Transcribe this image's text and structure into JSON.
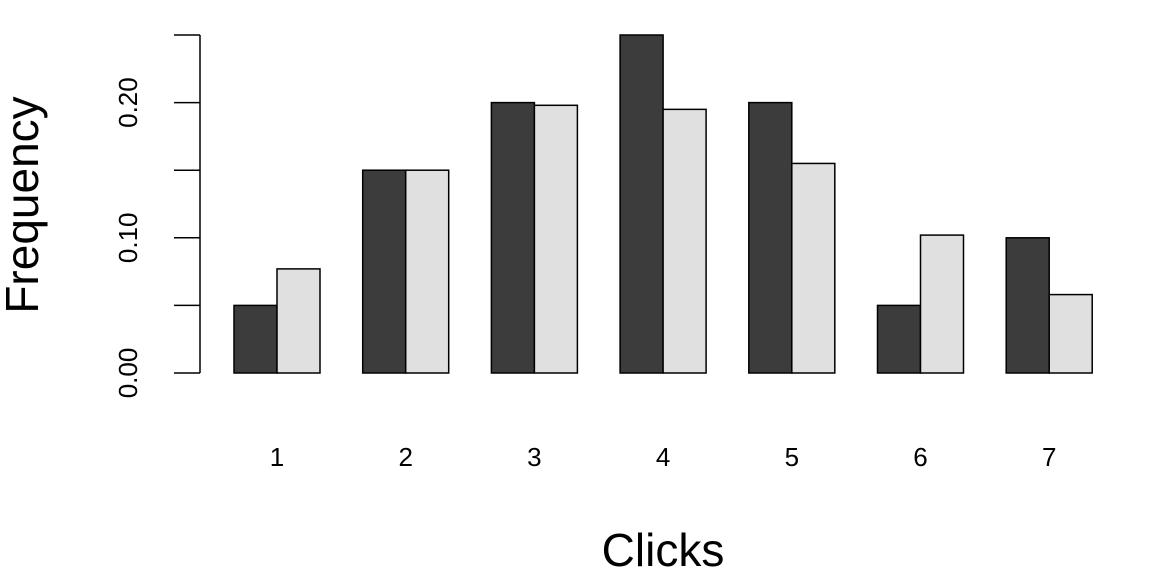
{
  "chart_data": {
    "type": "bar",
    "categories": [
      "1",
      "2",
      "3",
      "4",
      "5",
      "6",
      "7"
    ],
    "series": [
      {
        "values": [
          0.05,
          0.15,
          0.2,
          0.25,
          0.2,
          0.05,
          0.1
        ],
        "color": "#3c3c3c"
      },
      {
        "values": [
          0.077,
          0.15,
          0.198,
          0.195,
          0.155,
          0.102,
          0.058
        ],
        "color": "#e0e0e0"
      }
    ],
    "xlabel": "Clicks",
    "ylabel": "Frequency",
    "ylim": [
      0,
      0.25
    ],
    "y_ticks": [
      0.0,
      0.05,
      0.1,
      0.15,
      0.2,
      0.25
    ],
    "y_tick_labels": [
      "0.00",
      "",
      "0.10",
      "",
      "0.20",
      ""
    ],
    "grid": false,
    "legend": "none"
  }
}
